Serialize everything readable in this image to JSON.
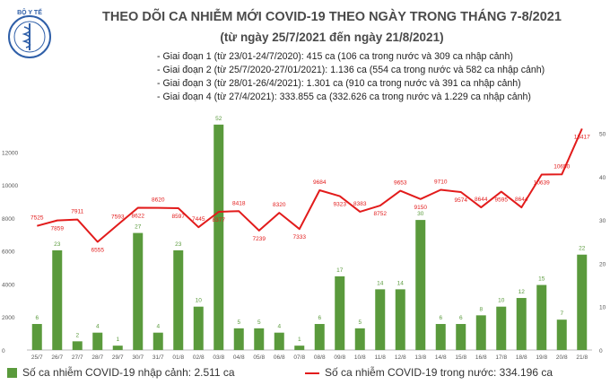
{
  "header": {
    "title": "THEO DÕI CA NHIỄM MỚI COVID-19 THEO NGÀY TRONG THÁNG 7-8/2021",
    "subtitle": "(từ ngày 25/7/2021 đến ngày 21/8/2021)",
    "logo_text": "BỘ Y TẾ"
  },
  "notes": [
    "- Giai đoạn 1 (từ 23/01-24/7/2020): 415 ca (106 ca trong nước và 309 ca nhập cảnh)",
    "- Giai đoạn 2 (từ 25/7/2020-27/01/2021): 1.136 ca (554 ca trong nước và 582 ca nhập cảnh)",
    "- Giai đoạn 3 (từ 28/01-26/4/2021): 1.301 ca (910 ca trong nước và 391 ca nhập cảnh)",
    "- Giai đoạn 4 (từ 27/4/2021): 333.855 ca (332.626 ca trong nước và 1.229 ca nhập cảnh)"
  ],
  "legend": {
    "bars": "Số ca nhiễm COVID-19 nhập cảnh: 2.511 ca",
    "line": "Số ca nhiễm COVID-19 trong nước: 334.196 ca"
  },
  "colors": {
    "bar": "#5a9a3c",
    "line": "#e21b1b",
    "text": "#4a4a4a",
    "grid": "#dddddd"
  },
  "chart_data": {
    "type": "bar",
    "categories": [
      "25/7",
      "26/7",
      "27/7",
      "28/7",
      "29/7",
      "30/7",
      "31/7",
      "01/8",
      "02/8",
      "03/8",
      "04/8",
      "05/8",
      "06/8",
      "07/8",
      "08/8",
      "09/8",
      "10/8",
      "11/8",
      "12/8",
      "13/8",
      "14/8",
      "15/8",
      "16/8",
      "17/8",
      "18/8",
      "19/8",
      "20/8",
      "21/8"
    ],
    "series": [
      {
        "name": "Số ca nhiễm COVID-19 nhập cảnh: 2.511 ca",
        "type": "bar",
        "axis": "right",
        "values": [
          6,
          23,
          2,
          4,
          1,
          27,
          4,
          23,
          10,
          52,
          5,
          5,
          4,
          1,
          6,
          17,
          5,
          14,
          14,
          30,
          6,
          6,
          8,
          10,
          12,
          15,
          7,
          22
        ]
      },
      {
        "name": "Số ca nhiễm COVID-19 trong nước: 334.196 ca",
        "type": "line",
        "axis": "left",
        "values": [
          7525,
          7859,
          7911,
          6555,
          7593,
          8622,
          8620,
          8597,
          7445,
          8377,
          8418,
          7239,
          8320,
          7333,
          9684,
          9323,
          8383,
          8752,
          9653,
          9150,
          9710,
          9574,
          8644,
          9595,
          8644,
          10639,
          10650,
          13417
        ]
      }
    ],
    "left_axis": {
      "ylim": [
        0,
        14000
      ],
      "ticks": [
        0,
        2000,
        4000,
        6000,
        8000,
        10000,
        12000
      ]
    },
    "right_axis": {
      "ylim": [
        0,
        60
      ],
      "ticks": [
        0,
        10,
        20,
        30,
        40,
        50
      ]
    },
    "grid": false,
    "legend_position": "bottom"
  }
}
